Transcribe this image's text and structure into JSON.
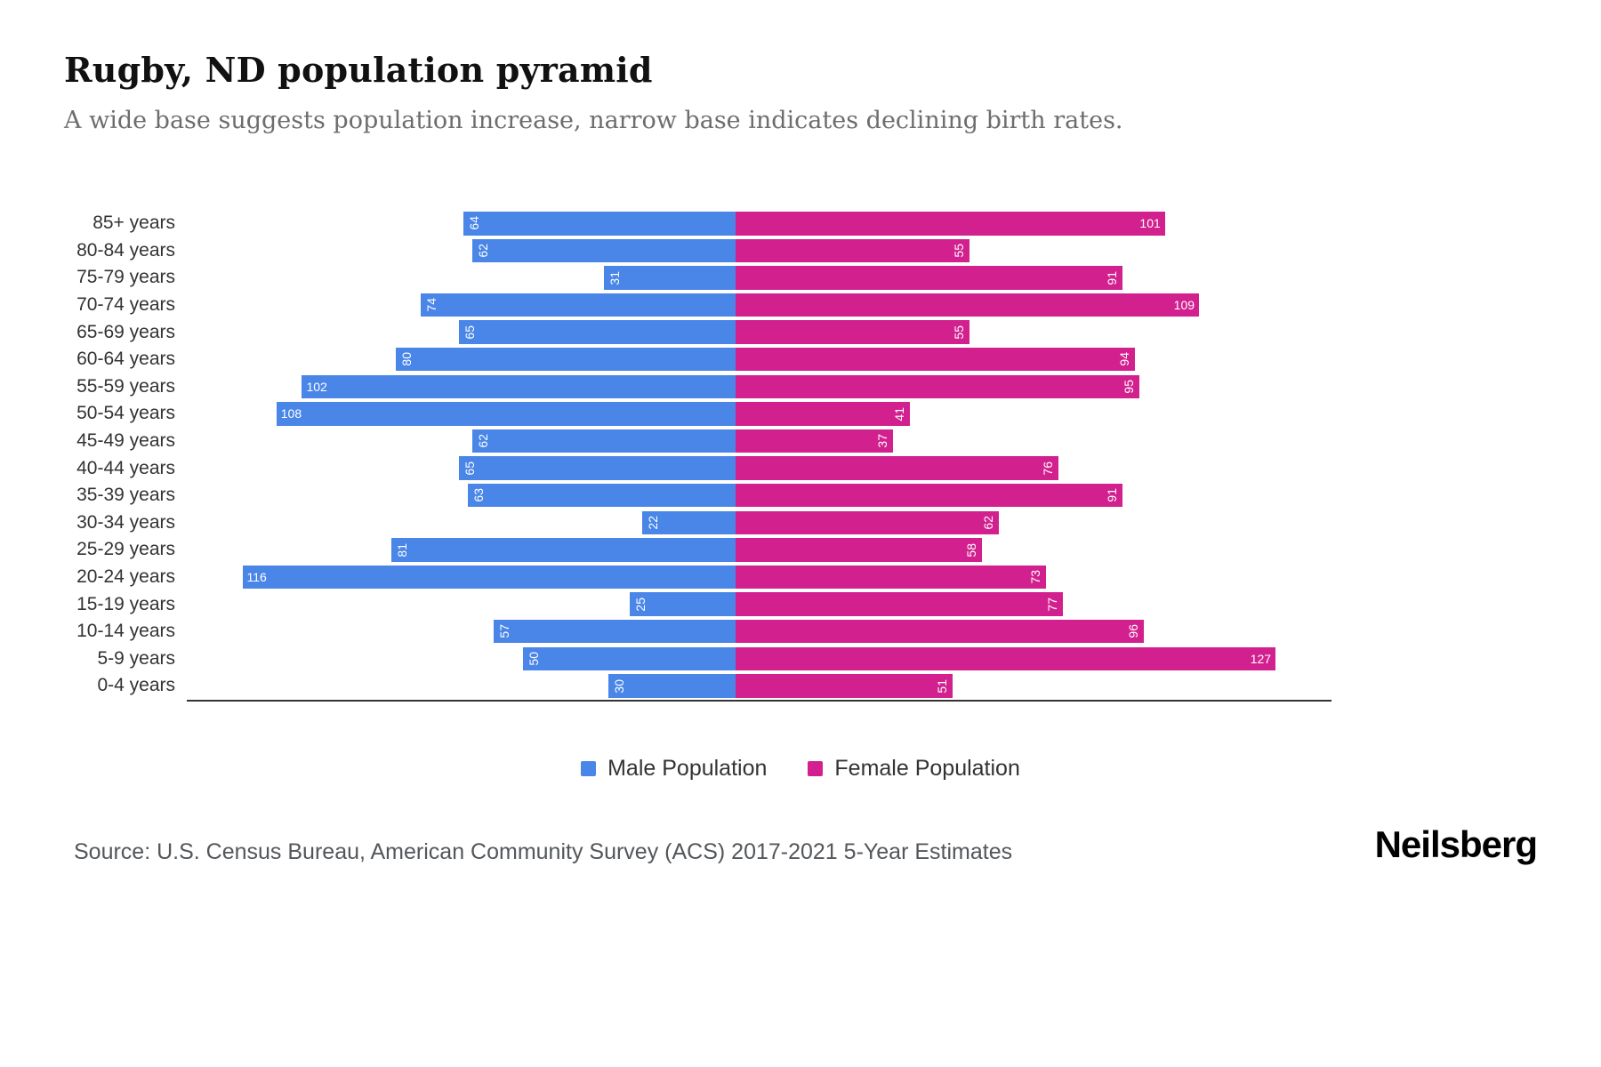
{
  "header": {
    "title": "Rugby, ND population pyramid",
    "subtitle": "A wide base suggests population increase, narrow base indicates declining birth rates."
  },
  "chart_data": {
    "type": "bar",
    "variant": "population-pyramid",
    "orientation": "horizontal",
    "categories": [
      "85+ years",
      "80-84 years",
      "75-79 years",
      "70-74 years",
      "65-69 years",
      "60-64 years",
      "55-59 years",
      "50-54 years",
      "45-49 years",
      "40-44 years",
      "35-39 years",
      "30-34 years",
      "25-29 years",
      "20-24 years",
      "15-19 years",
      "10-14 years",
      "5-9 years",
      "0-4 years"
    ],
    "series": [
      {
        "name": "Male Population",
        "side": "left",
        "color": "#4a86e8",
        "values": [
          64,
          62,
          31,
          74,
          65,
          80,
          102,
          108,
          62,
          65,
          63,
          22,
          81,
          116,
          25,
          57,
          50,
          30
        ]
      },
      {
        "name": "Female Population",
        "side": "right",
        "color": "#d2218f",
        "values": [
          101,
          55,
          91,
          109,
          55,
          94,
          95,
          41,
          37,
          76,
          91,
          62,
          58,
          73,
          77,
          96,
          127,
          51
        ]
      }
    ],
    "value_axis_max": 135,
    "grid": false,
    "legend_position": "bottom",
    "data_labels": "inside-outer-end, white"
  },
  "legend": {
    "male_label": "Male Population",
    "female_label": "Female Population"
  },
  "footer": {
    "source": "Source: U.S. Census Bureau, American Community Survey (ACS) 2017-2021 5-Year Estimates",
    "brand": "Neilsberg"
  }
}
